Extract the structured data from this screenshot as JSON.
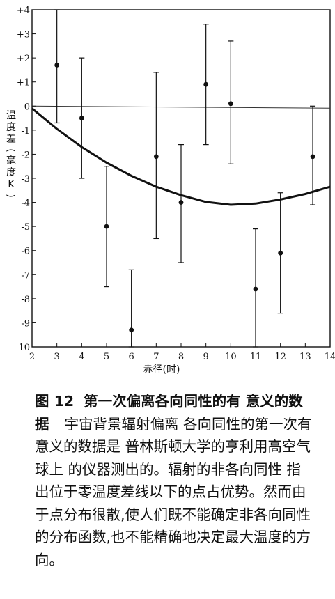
{
  "chart_data": {
    "type": "scatter",
    "xlabel": "赤径(时)",
    "ylabel": "温度差(毫度K)",
    "xlim": [
      2,
      14
    ],
    "ylim": [
      -10,
      4
    ],
    "x_ticks": [
      "2",
      "3",
      "4",
      "5",
      "6",
      "7",
      "8",
      "9",
      "10",
      "11",
      "12",
      "13",
      "14"
    ],
    "y_ticks": [
      "+4",
      "+3",
      "+2",
      "+1",
      "0",
      "-1",
      "-2",
      "-3",
      "-4",
      "-5",
      "-6",
      "-7",
      "-8",
      "-9",
      "-10"
    ],
    "zero_line": true,
    "points": [
      {
        "x": 3.0,
        "y": 1.7,
        "err_low": -0.7,
        "err_high": 4.0
      },
      {
        "x": 4.0,
        "y": -0.5,
        "err_low": -3.0,
        "err_high": 2.0
      },
      {
        "x": 5.0,
        "y": -5.0,
        "err_low": -7.5,
        "err_high": -2.5
      },
      {
        "x": 6.0,
        "y": -9.3,
        "err_low": -10.0,
        "err_high": -6.8
      },
      {
        "x": 7.0,
        "y": -2.1,
        "err_low": -5.5,
        "err_high": 1.4
      },
      {
        "x": 8.0,
        "y": -4.0,
        "err_low": -6.5,
        "err_high": -1.6
      },
      {
        "x": 9.0,
        "y": 0.9,
        "err_low": -1.6,
        "err_high": 3.4
      },
      {
        "x": 10.0,
        "y": 0.1,
        "err_low": -2.4,
        "err_high": 2.7
      },
      {
        "x": 11.0,
        "y": -7.6,
        "err_low": -10.0,
        "err_high": -5.1
      },
      {
        "x": 12.0,
        "y": -6.1,
        "err_low": -8.6,
        "err_high": -3.6
      },
      {
        "x": 13.3,
        "y": -2.1,
        "err_low": -4.1,
        "err_high": 0.0
      }
    ],
    "fit_curve": {
      "x": [
        2,
        3,
        4,
        5,
        6,
        7,
        8,
        9,
        10,
        11,
        12,
        13,
        14
      ],
      "y": [
        -0.1,
        -0.95,
        -1.7,
        -2.35,
        -2.9,
        -3.35,
        -3.7,
        -3.98,
        -4.1,
        -4.05,
        -3.88,
        -3.65,
        -3.35
      ]
    }
  },
  "caption": {
    "label": "图 12",
    "title": "第一次偏离各向同性的有 意义的数据",
    "body": "宇宙背景辐射偏离 各向同性的第一次有意义的数据是 普林斯顿大学的亨利用高空气球上 的仪器测出的。辐射的非各向同性 指出位于零温度差线以下的点占优势。然而由于点分布很散,使人们既不能确定非各向同性的分布函数,也不能精确地决定最大温度的方向。"
  }
}
